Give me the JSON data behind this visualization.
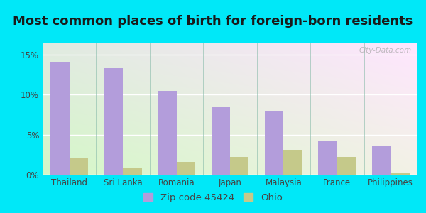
{
  "title": "Most common places of birth for foreign-born residents",
  "categories": [
    "Thailand",
    "Sri Lanka",
    "Romania",
    "Japan",
    "Malaysia",
    "France",
    "Philippines"
  ],
  "zip_values": [
    0.14,
    0.133,
    0.105,
    0.085,
    0.08,
    0.043,
    0.036
  ],
  "ohio_values": [
    0.021,
    0.009,
    0.016,
    0.022,
    0.031,
    0.022,
    0.003
  ],
  "zip_color": "#b39ddb",
  "ohio_color": "#c5c98a",
  "background_outer": "#00e8f8",
  "bar_width": 0.35,
  "ylim": [
    0,
    0.165
  ],
  "yticks": [
    0.0,
    0.05,
    0.1,
    0.15
  ],
  "legend_zip_label": "Zip code 45424",
  "legend_ohio_label": "Ohio",
  "watermark": "City-Data.com",
  "title_fontsize": 13,
  "tick_fontsize": 8.5,
  "legend_fontsize": 9.5
}
